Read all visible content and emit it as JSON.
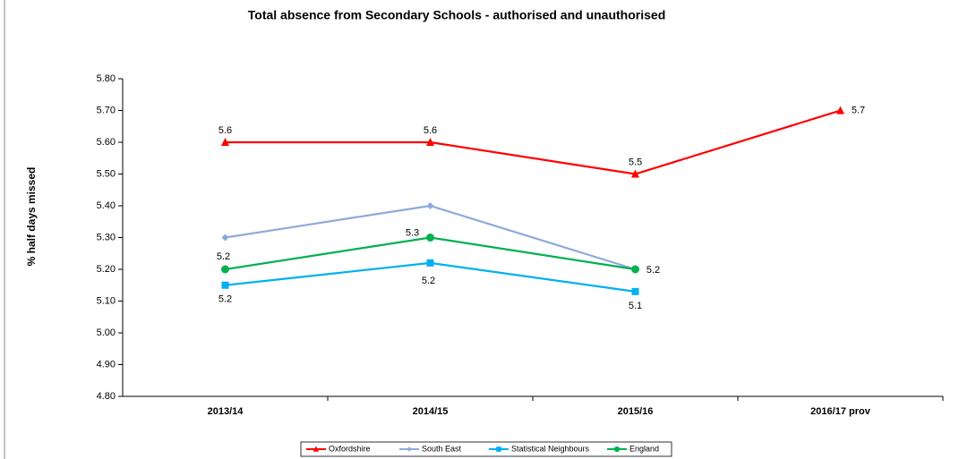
{
  "chart_data": {
    "type": "line",
    "title": "Total absence from Secondary Schools - authorised and unauthorised",
    "y_label": "% half days missed",
    "categories": [
      "2013/14",
      "2014/15",
      "2015/16",
      "2016/17 prov"
    ],
    "ylim": [
      4.8,
      5.8
    ],
    "yticks": [
      {
        "value": 4.8,
        "label": "4.80"
      },
      {
        "value": 4.9,
        "label": "4.90"
      },
      {
        "value": 5.0,
        "label": "5.00"
      },
      {
        "value": 5.1,
        "label": "5.10"
      },
      {
        "value": 5.2,
        "label": "5.20"
      },
      {
        "value": 5.3,
        "label": "5.30"
      },
      {
        "value": 5.4,
        "label": "5.40"
      },
      {
        "value": 5.5,
        "label": "5.50"
      },
      {
        "value": 5.6,
        "label": "5.60"
      },
      {
        "value": 5.7,
        "label": "5.70"
      },
      {
        "value": 5.8,
        "label": "5.80"
      }
    ],
    "legend": "bottom",
    "series": [
      {
        "name": "Oxfordshire",
        "color": "#ff0000",
        "marker": "triangle",
        "values": [
          5.6,
          5.6,
          5.5,
          5.7
        ],
        "value_labels": [
          "5.6",
          "5.6",
          "5.5",
          "5.7"
        ]
      },
      {
        "name": "South East",
        "color": "#8eaadb",
        "marker": "diamond",
        "values": [
          5.3,
          5.4,
          5.2,
          null
        ]
      },
      {
        "name": "Statistical Neighbours",
        "color": "#00b0f0",
        "marker": "square",
        "values": [
          5.15,
          5.22,
          5.13,
          null
        ],
        "value_labels": [
          "5.2",
          "5.2",
          "5.1",
          null
        ]
      },
      {
        "name": "England",
        "color": "#00b050",
        "marker": "circle",
        "values": [
          5.2,
          5.3,
          5.2,
          null
        ],
        "value_labels": [
          "5.2",
          "5.3",
          "5.2",
          null
        ]
      }
    ]
  }
}
